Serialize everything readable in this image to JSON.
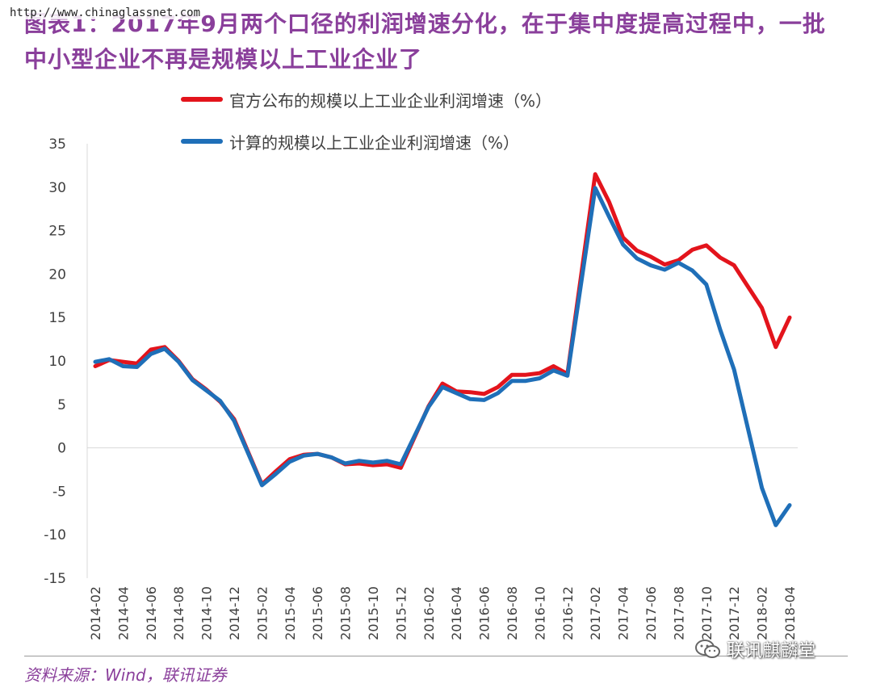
{
  "watermark": "http://www.chinaglassnet.com",
  "title": "图表1：2017年9月两个口径的利润增速分化，在于集中度提高过程中，一批中小型企业不再是规模以上工业企业了",
  "source": "资料来源：Wind，联讯证券",
  "brand": "联讯麒麟堂",
  "colors": {
    "official": "#e3141c",
    "calculated": "#1f6fb8",
    "title": "#8a3f9b"
  },
  "chart_data": {
    "type": "line",
    "title": "",
    "xlabel": "",
    "ylabel": "",
    "ylim": [
      -15,
      35
    ],
    "yticks": [
      "35",
      "30",
      "25",
      "20",
      "15",
      "10",
      "5",
      "0",
      "-5",
      "-10",
      "-15"
    ],
    "grid": false,
    "legend_position": "top-left",
    "categories": [
      "2014-02",
      "2014-03",
      "2014-04",
      "2014-05",
      "2014-06",
      "2014-07",
      "2014-08",
      "2014-09",
      "2014-10",
      "2014-11",
      "2014-12",
      "2015-01",
      "2015-02",
      "2015-03",
      "2015-04",
      "2015-05",
      "2015-06",
      "2015-07",
      "2015-08",
      "2015-09",
      "2015-10",
      "2015-11",
      "2015-12",
      "2016-01",
      "2016-02",
      "2016-03",
      "2016-04",
      "2016-05",
      "2016-06",
      "2016-07",
      "2016-08",
      "2016-09",
      "2016-10",
      "2016-11",
      "2016-12",
      "2017-01",
      "2017-02",
      "2017-03",
      "2017-04",
      "2017-05",
      "2017-06",
      "2017-07",
      "2017-08",
      "2017-09",
      "2017-10",
      "2017-11",
      "2017-12",
      "2018-01",
      "2018-02",
      "2018-03",
      "2018-04"
    ],
    "xtick_labels": [
      "2014-02",
      "2014-04",
      "2014-06",
      "2014-08",
      "2014-10",
      "2014-12",
      "2015-02",
      "2015-04",
      "2015-06",
      "2015-08",
      "2015-10",
      "2015-12",
      "2016-02",
      "2016-04",
      "2016-06",
      "2016-08",
      "2016-10",
      "2016-12",
      "2017-02",
      "2017-04",
      "2017-06",
      "2017-08",
      "2017-10",
      "2017-12",
      "2018-02",
      "2018-04"
    ],
    "series": [
      {
        "name": "官方公布的规模以上工业企业利润增速（%）",
        "color": "#e3141c",
        "values": [
          9.4,
          10.1,
          9.9,
          9.7,
          11.3,
          11.6,
          10.0,
          7.9,
          6.7,
          5.3,
          3.3,
          null,
          -4.2,
          -2.7,
          -1.3,
          -0.8,
          -0.7,
          -1.1,
          -1.9,
          -1.8,
          -2.0,
          -1.9,
          -2.3,
          null,
          4.8,
          7.4,
          6.5,
          6.4,
          6.2,
          7.0,
          8.4,
          8.4,
          8.6,
          9.4,
          8.5,
          null,
          31.5,
          28.3,
          24.2,
          22.7,
          22.0,
          21.1,
          21.6,
          22.8,
          23.3,
          21.9,
          21.0,
          null,
          16.1,
          11.6,
          15.0
        ]
      },
      {
        "name": "计算的规模以上工业企业利润增速（%）",
        "color": "#1f6fb8",
        "values": [
          9.9,
          10.2,
          9.4,
          9.3,
          10.8,
          11.4,
          9.9,
          7.8,
          6.6,
          5.4,
          3.1,
          null,
          -4.3,
          -3.0,
          -1.6,
          -0.9,
          -0.7,
          -1.1,
          -1.8,
          -1.5,
          -1.7,
          -1.5,
          -1.9,
          null,
          4.7,
          7.0,
          6.3,
          5.6,
          5.5,
          6.3,
          7.7,
          7.7,
          8.0,
          8.9,
          8.3,
          null,
          29.9,
          26.6,
          23.4,
          21.8,
          21.0,
          20.5,
          21.3,
          20.4,
          18.8,
          13.6,
          9.0,
          null,
          -4.6,
          -8.9,
          -6.6
        ]
      }
    ]
  }
}
